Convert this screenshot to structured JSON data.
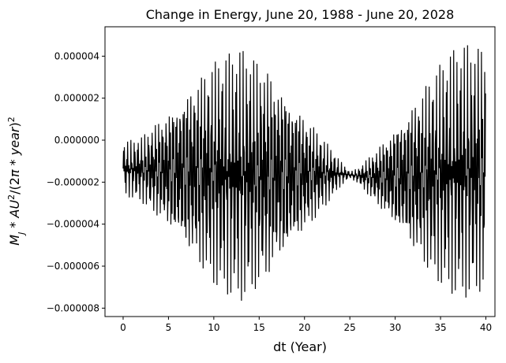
{
  "chart_data": {
    "type": "line",
    "title": "Change in Energy, June 20, 1988 - June 20, 2028",
    "xlabel": "dt (Year)",
    "ylabel": "M_J * AU^2/(2π * year)^2",
    "xlim": [
      -2,
      41
    ],
    "ylim": [
      -8.4e-06,
      5.4e-06
    ],
    "x_ticks": [
      0,
      5,
      10,
      15,
      20,
      25,
      30,
      35,
      40
    ],
    "x_tick_labels": [
      "0",
      "5",
      "10",
      "15",
      "20",
      "25",
      "30",
      "35",
      "40"
    ],
    "y_ticks": [
      4e-06,
      2e-06,
      0.0,
      -2e-06,
      -4e-06,
      -6e-06,
      -8e-06
    ],
    "y_tick_labels": [
      "0.000004",
      "0.000002",
      "0.000000",
      "−0.000002",
      "−0.000004",
      "−0.000006",
      "−0.000008"
    ],
    "grid": false,
    "legend": "none",
    "line_color": "#000000",
    "series": [
      {
        "x": [
          0,
          2,
          4,
          6,
          8,
          10,
          12,
          13,
          14,
          16,
          18,
          20,
          22,
          24,
          25,
          26,
          28,
          30,
          32,
          34,
          36,
          38,
          40
        ],
        "upper": [
          -1e-07,
          2e-07,
          1.2e-06,
          2.3e-06,
          3.3e-06,
          3.9e-06,
          4.2e-06,
          4.4e-06,
          4.2e-06,
          3.8e-06,
          2.8e-06,
          1.5e-06,
          2e-07,
          -1e-06,
          -1.5e-06,
          -1.3e-06,
          -3e-07,
          1e-06,
          2.2e-06,
          3.3e-06,
          4.2e-06,
          4.7e-06,
          4.8e-06
        ],
        "lower": [
          -2.6e-06,
          -3e-06,
          -4e-06,
          -5.2e-06,
          -6.3e-06,
          -7.1e-06,
          -7.5e-06,
          -7.7e-06,
          -7.5e-06,
          -7e-06,
          -6e-06,
          -4.7e-06,
          -3.4e-06,
          -2.2e-06,
          -1.8e-06,
          -2.1e-06,
          -3.2e-06,
          -4.5e-06,
          -5.7e-06,
          -6.7e-06,
          -7.3e-06,
          -7.6e-06,
          -7.6e-06
        ]
      }
    ]
  }
}
